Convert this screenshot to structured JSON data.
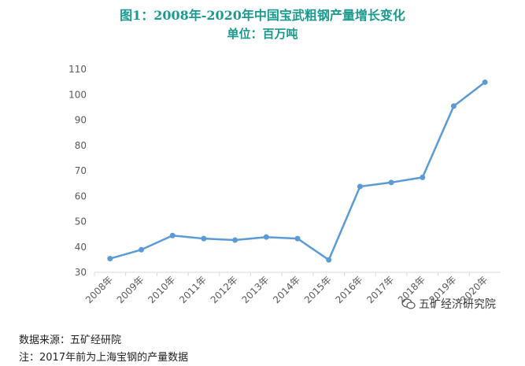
{
  "header": {
    "title": "图1：2008年-2020年中国宝武粗钢产量增长变化",
    "subtitle": "单位：百万吨"
  },
  "chart_data": {
    "type": "line",
    "title": "图1：2008年-2020年中国宝武粗钢产量增长变化",
    "subtitle": "单位：百万吨",
    "categories": [
      "2008年",
      "2009年",
      "2010年",
      "2011年",
      "2012年",
      "2013年",
      "2014年",
      "2015年",
      "2016年",
      "2017年",
      "2018年",
      "2019年",
      "2020年"
    ],
    "series": [
      {
        "values": [
          35.4,
          38.9,
          44.5,
          43.3,
          42.7,
          43.9,
          43.3,
          34.9,
          63.8,
          65.4,
          67.4,
          95.5,
          104.9
        ]
      }
    ],
    "yticks": [
      30,
      40,
      50,
      60,
      70,
      80,
      90,
      100,
      110
    ],
    "ylim": [
      30,
      110
    ],
    "grid": false,
    "line_color": "#5b9bd5"
  },
  "watermark": {
    "text": "五矿经济研究院",
    "icon": "wechat-icon"
  },
  "footer": {
    "source": "数据来源：五矿经研院",
    "note": "注：2017年前为上海宝钢的产量数据"
  }
}
